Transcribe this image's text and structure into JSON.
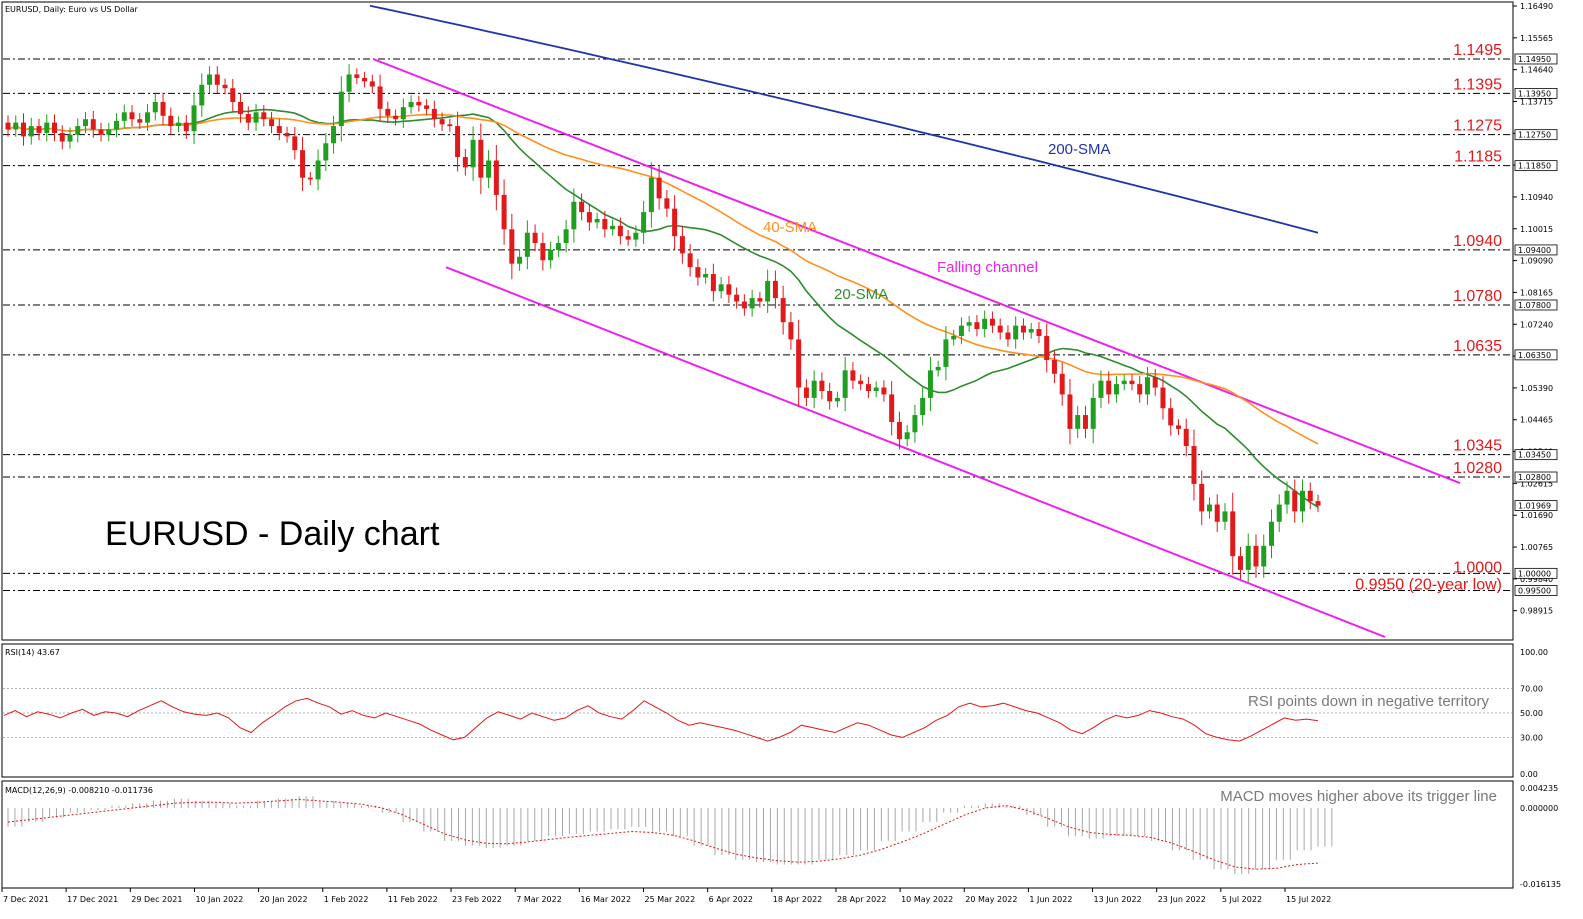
{
  "header": {
    "symbol_line": "EURUSD, Daily:  Euro vs US Dollar"
  },
  "title_overlay": "EURUSD - Daily chart",
  "colors": {
    "bull": "#1f9e1f",
    "bear": "#e0191b",
    "sma20": "#2e8b2e",
    "sma40": "#ff9020",
    "sma200": "#2233aa",
    "channel": "#ee22ee",
    "level_text": "#e0191b",
    "low_text": "#2e8b2e",
    "rsi": "#e0191b",
    "macd_signal": "#e0191b",
    "macd_hist": "#a8a8a8"
  },
  "chart_data": [
    {
      "type": "candlestick",
      "title": "EURUSD, Daily:  Euro vs US Dollar",
      "ylim": [
        0.9815,
        1.1649
      ],
      "price_axis_ticks": [
        "1.16490",
        "1.15565",
        "1.14640",
        "1.13715",
        "1.12790",
        "1.11865",
        "1.10940",
        "1.10015",
        "1.09090",
        "1.08165",
        "1.07240",
        "1.06315",
        "1.05390",
        "1.04465",
        "1.03540",
        "1.02615",
        "1.01690",
        "1.00765",
        "0.99840",
        "0.98915"
      ],
      "price_axis_tags": [
        "1.14950",
        "1.13950",
        "1.12750",
        "1.11850",
        "1.09400",
        "1.07800",
        "1.06350",
        "1.03450",
        "1.02800",
        "1.01969",
        "1.00000",
        "0.99500"
      ],
      "current_price_tag": "1.01969",
      "date_labels": [
        "7 Dec 2021",
        "17 Dec 2021",
        "29 Dec 2021",
        "10 Jan 2022",
        "20 Jan 2022",
        "1 Feb 2022",
        "11 Feb 2022",
        "23 Feb 2022",
        "7 Mar 2022",
        "16 Mar 2022",
        "25 Mar 2022",
        "6 Apr 2022",
        "18 Apr 2022",
        "28 Apr 2022",
        "10 May 2022",
        "20 May 2022",
        "1 Jun 2022",
        "13 Jun 2022",
        "23 Jun 2022",
        "5 Jul 2022",
        "15 Jul 2022"
      ],
      "levels": [
        {
          "label": "1.1495",
          "value": 1.1495
        },
        {
          "label": "1.1395",
          "value": 1.1395
        },
        {
          "label": "1.1275",
          "value": 1.1275
        },
        {
          "label": "1.1185",
          "value": 1.1185
        },
        {
          "label": "1.0940",
          "value": 1.094
        },
        {
          "label": "1.0780",
          "value": 1.078
        },
        {
          "label": "1.0635",
          "value": 1.0635
        },
        {
          "label": "1.0345",
          "value": 1.0345
        },
        {
          "label": "1.0280",
          "value": 1.028
        },
        {
          "label": "1.0000",
          "value": 1.0
        },
        {
          "label": "0.9950 (20-year low)",
          "value": 0.995
        }
      ],
      "annotations": [
        {
          "text": "200-SMA",
          "color": "#2233aa"
        },
        {
          "text": "40-SMA",
          "color": "#ff9020"
        },
        {
          "text": "20-SMA",
          "color": "#2e8b2e"
        },
        {
          "text": "Falling channel",
          "color": "#ee22ee"
        }
      ],
      "ohlc_close": [
        1.129,
        1.131,
        1.127,
        1.13,
        1.128,
        1.131,
        1.128,
        1.1255,
        1.1275,
        1.13,
        1.132,
        1.129,
        1.1275,
        1.129,
        1.1315,
        1.134,
        1.132,
        1.131,
        1.134,
        1.137,
        1.133,
        1.13,
        1.131,
        1.1285,
        1.136,
        1.142,
        1.145,
        1.142,
        1.141,
        1.137,
        1.1335,
        1.131,
        1.134,
        1.132,
        1.13,
        1.128,
        1.127,
        1.123,
        1.115,
        1.1145,
        1.12,
        1.125,
        1.13,
        1.14,
        1.145,
        1.144,
        1.143,
        1.1415,
        1.135,
        1.133,
        1.132,
        1.1355,
        1.137,
        1.136,
        1.135,
        1.132,
        1.1305,
        1.13,
        1.121,
        1.118,
        1.126,
        1.115,
        1.12,
        1.11,
        1.1,
        1.09,
        1.092,
        1.099,
        1.096,
        1.091,
        1.094,
        1.096,
        1.1,
        1.108,
        1.105,
        1.102,
        1.103,
        1.1,
        1.101,
        1.098,
        1.097,
        1.099,
        1.105,
        1.115,
        1.109,
        1.106,
        1.098,
        1.093,
        1.089,
        1.086,
        1.087,
        1.082,
        1.084,
        1.081,
        1.079,
        1.077,
        1.08,
        1.079,
        1.085,
        1.08,
        1.073,
        1.068,
        1.054,
        1.051,
        1.056,
        1.053,
        1.05,
        1.051,
        1.059,
        1.056,
        1.055,
        1.053,
        1.054,
        1.052,
        1.044,
        1.039,
        1.041,
        1.046,
        1.051,
        1.059,
        1.06,
        1.068,
        1.069,
        1.072,
        1.073,
        1.071,
        1.074,
        1.072,
        1.07,
        1.068,
        1.072,
        1.07,
        1.071,
        1.069,
        1.062,
        1.058,
        1.052,
        1.042,
        1.046,
        1.042,
        1.051,
        1.056,
        1.052,
        1.055,
        1.056,
        1.055,
        1.052,
        1.057,
        1.054,
        1.048,
        1.043,
        1.042,
        1.037,
        1.026,
        1.018,
        1.02,
        1.015,
        1.018,
        1.005,
        1.001,
        1.008,
        1.002,
        1.008,
        1.015,
        1.02,
        1.024,
        1.018,
        1.024,
        1.021,
        1.0197
      ],
      "sma200": {
        "from_value": 1.165,
        "to_value": 1.099
      },
      "channel_upper": {
        "from_value": 1.1495,
        "to_value": 1.028
      },
      "channel_lower": {
        "from_value": 1.089,
        "to_value": 0.9815
      }
    },
    {
      "type": "line",
      "title": "RSI(14) 43.67",
      "ylim": [
        0,
        100
      ],
      "y_ticks": [
        "100.00",
        "70.00",
        "50.00",
        "30.00",
        "0.00"
      ],
      "note": "RSI points down in negative territory",
      "values": [
        48,
        52,
        47,
        51,
        49,
        46,
        50,
        53,
        48,
        51,
        50,
        47,
        52,
        56,
        60,
        55,
        51,
        49,
        48,
        50,
        46,
        38,
        34,
        42,
        48,
        55,
        60,
        62,
        58,
        55,
        49,
        52,
        48,
        46,
        50,
        47,
        44,
        41,
        36,
        32,
        28,
        30,
        38,
        46,
        51,
        48,
        45,
        50,
        47,
        44,
        46,
        52,
        56,
        50,
        47,
        45,
        52,
        60,
        55,
        50,
        44,
        40,
        42,
        40,
        38,
        36,
        33,
        30,
        27,
        30,
        34,
        40,
        38,
        36,
        34,
        38,
        42,
        40,
        36,
        32,
        30,
        34,
        38,
        44,
        48,
        55,
        58,
        55,
        56,
        58,
        55,
        52,
        50,
        46,
        42,
        36,
        33,
        38,
        44,
        48,
        46,
        48,
        52,
        50,
        47,
        45,
        40,
        33,
        30,
        28,
        27,
        31,
        36,
        41,
        46,
        44,
        45,
        43.67
      ]
    },
    {
      "type": "bar+line",
      "title": "MACD(12,26,9) -0.008210 -0.011736",
      "ylim": [
        -0.016135,
        0.004235
      ],
      "y_ticks": [
        "0.004235",
        "0.000000",
        "-0.016135"
      ],
      "note": "MACD moves higher above its trigger line",
      "histogram": [
        -0.004,
        -0.003,
        -0.002,
        -0.001,
        -0.0005,
        0.0005,
        0.001,
        0.0015,
        0.002,
        0.0015,
        0.001,
        0.0005,
        0.0015,
        0.002,
        0.0025,
        0.0015,
        0.001,
        0.0005,
        -0.001,
        -0.003,
        -0.005,
        -0.007,
        -0.008,
        -0.0085,
        -0.008,
        -0.007,
        -0.006,
        -0.0055,
        -0.005,
        -0.0045,
        -0.004,
        -0.005,
        -0.006,
        -0.008,
        -0.01,
        -0.011,
        -0.0115,
        -0.012,
        -0.012,
        -0.011,
        -0.01,
        -0.009,
        -0.007,
        -0.005,
        -0.003,
        -0.001,
        0.0005,
        0.001,
        0.0005,
        -0.0015,
        -0.004,
        -0.006,
        -0.0065,
        -0.006,
        -0.006,
        -0.007,
        -0.009,
        -0.011,
        -0.013,
        -0.014,
        -0.013,
        -0.011,
        -0.009,
        -0.0082
      ],
      "signal": [
        -0.003,
        -0.0025,
        -0.002,
        -0.0015,
        -0.001,
        -0.0005,
        0.0,
        0.0005,
        0.001,
        0.0012,
        0.0012,
        0.001,
        0.0012,
        0.0015,
        0.0018,
        0.0015,
        0.0012,
        0.0008,
        0.0,
        -0.0015,
        -0.0035,
        -0.0055,
        -0.0068,
        -0.0075,
        -0.0076,
        -0.0072,
        -0.0067,
        -0.0062,
        -0.0058,
        -0.0054,
        -0.005,
        -0.0052,
        -0.0058,
        -0.007,
        -0.0085,
        -0.0098,
        -0.0106,
        -0.0112,
        -0.0115,
        -0.0113,
        -0.0108,
        -0.01,
        -0.0088,
        -0.0072,
        -0.0055,
        -0.0035,
        -0.0015,
        0.0,
        0.0005,
        -0.0005,
        -0.0022,
        -0.004,
        -0.0052,
        -0.0056,
        -0.0058,
        -0.0063,
        -0.0075,
        -0.0092,
        -0.011,
        -0.0125,
        -0.013,
        -0.0128,
        -0.012,
        -0.0117
      ]
    }
  ]
}
